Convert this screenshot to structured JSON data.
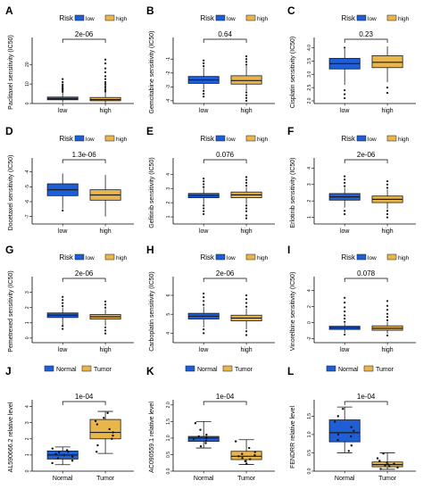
{
  "colors": {
    "low": "#1f5fd6",
    "high": "#e8b64c",
    "Normal": "#1f5fd6",
    "Tumor": "#e8b64c",
    "stroke": "#1a1a1a",
    "point": "#111111"
  },
  "chart_data": [
    {
      "panel": "A",
      "type": "boxplot",
      "ylabel": "Paclitaxel sensitivity (IC50)",
      "legend_title": "Risk",
      "legend": [
        "low",
        "high"
      ],
      "categories": [
        "low",
        "high"
      ],
      "pvalue": "2e-06",
      "yticks": [
        0,
        10,
        20
      ],
      "ytick_labels": [
        "0",
        "10",
        "20"
      ],
      "ylim": [
        0,
        32
      ],
      "boxes": [
        {
          "min": 0.6,
          "q1": 1.9,
          "median": 2.4,
          "q3": 3.3,
          "max": 5.6,
          "outliers": [
            6,
            6.8,
            7.5,
            8.2,
            9,
            9.8,
            11,
            12.5
          ]
        },
        {
          "min": 0.3,
          "q1": 1.4,
          "median": 2.0,
          "q3": 3.1,
          "max": 5.8,
          "outliers": [
            6.2,
            7,
            8,
            9,
            10,
            11,
            12.5,
            14,
            16,
            18,
            20.5,
            22.5
          ]
        }
      ]
    },
    {
      "panel": "B",
      "type": "boxplot",
      "ylabel": "Gemcitabine sensitivity (IC50)",
      "legend_title": "Risk",
      "legend": [
        "low",
        "high"
      ],
      "categories": [
        "low",
        "high"
      ],
      "pvalue": "0.64",
      "yticks": [
        -4,
        -3,
        -2,
        -1
      ],
      "ytick_labels": [
        "-4",
        "-3",
        "-2",
        "-1"
      ],
      "ylim": [
        -4.2,
        0.3
      ],
      "boxes": [
        {
          "min": -3.2,
          "q1": -2.75,
          "median": -2.5,
          "q3": -2.25,
          "max": -1.6,
          "outliers": [
            -1.5,
            -1.3,
            -1.1,
            -3.3,
            -3.5,
            -3.7
          ]
        },
        {
          "min": -3.3,
          "q1": -2.8,
          "median": -2.55,
          "q3": -2.2,
          "max": -1.5,
          "outliers": [
            -1.4,
            -1.2,
            -1.0,
            -0.8,
            -3.4,
            -3.6,
            -3.8,
            -4.0
          ]
        }
      ]
    },
    {
      "panel": "C",
      "type": "boxplot",
      "ylabel": "Cisplatin sensitivity (IC50)",
      "legend_title": "Risk",
      "legend": [
        "low",
        "high"
      ],
      "categories": [
        "low",
        "high"
      ],
      "pvalue": "0.23",
      "yticks": [
        2,
        2.5,
        3,
        3.5,
        4
      ],
      "ytick_labels": [
        "2.0",
        "2.5",
        "3.0",
        "3.5",
        "4.0"
      ],
      "ylim": [
        1.9,
        4.25
      ],
      "boxes": [
        {
          "min": 2.6,
          "q1": 3.2,
          "median": 3.4,
          "q3": 3.6,
          "max": 3.95,
          "outliers": [
            2.4,
            2.25,
            2.1,
            4.0
          ]
        },
        {
          "min": 2.7,
          "q1": 3.25,
          "median": 3.45,
          "q3": 3.7,
          "max": 4.05,
          "outliers": [
            2.5,
            2.3
          ]
        }
      ]
    },
    {
      "panel": "D",
      "type": "boxplot",
      "ylabel": "Docetaxel sensitivity (IC50)",
      "legend_title": "Risk",
      "legend": [
        "low",
        "high"
      ],
      "categories": [
        "low",
        "high"
      ],
      "pvalue": "1.3e-06",
      "yticks": [
        -7,
        -6,
        -5,
        -4
      ],
      "ytick_labels": [
        "-7",
        "-6",
        "-5",
        "-4"
      ],
      "ylim": [
        -7.5,
        -3.3
      ],
      "boxes": [
        {
          "min": -6.5,
          "q1": -5.6,
          "median": -5.2,
          "q3": -4.8,
          "max": -4.1,
          "outliers": [
            -6.6
          ]
        },
        {
          "min": -7.0,
          "q1": -5.9,
          "median": -5.55,
          "q3": -5.2,
          "max": -4.2,
          "outliers": []
        }
      ]
    },
    {
      "panel": "E",
      "type": "boxplot",
      "ylabel": "Gefitinib sensitivity (IC50)",
      "legend_title": "Risk",
      "legend": [
        "low",
        "high"
      ],
      "categories": [
        "low",
        "high"
      ],
      "pvalue": "0.076",
      "yticks": [
        1,
        2,
        3,
        4
      ],
      "ytick_labels": [
        "1",
        "2",
        "3",
        "4"
      ],
      "ylim": [
        0.5,
        4.9
      ],
      "boxes": [
        {
          "min": 1.9,
          "q1": 2.35,
          "median": 2.5,
          "q3": 2.65,
          "max": 3.0,
          "outliers": [
            3.1,
            3.3,
            3.5,
            3.7,
            1.8,
            1.6,
            1.4,
            1.2
          ]
        },
        {
          "min": 1.9,
          "q1": 2.35,
          "median": 2.55,
          "q3": 2.75,
          "max": 3.1,
          "outliers": [
            3.2,
            3.4,
            3.6,
            3.8,
            1.8,
            1.6,
            1.4,
            1.1,
            0.9
          ]
        }
      ]
    },
    {
      "panel": "F",
      "type": "boxplot",
      "ylabel": "Erlotinib sensitivity (IC50)",
      "legend_title": "Risk",
      "legend": [
        "low",
        "high"
      ],
      "categories": [
        "low",
        "high"
      ],
      "pvalue": "2e-06",
      "yticks": [
        1,
        2,
        3,
        4
      ],
      "ytick_labels": [
        "1",
        "2",
        "3",
        "4"
      ],
      "ylim": [
        0.6,
        4.4
      ],
      "boxes": [
        {
          "min": 1.6,
          "q1": 2.05,
          "median": 2.25,
          "q3": 2.45,
          "max": 2.8,
          "outliers": [
            2.9,
            3.1,
            3.3,
            3.5,
            1.4,
            1.2
          ]
        },
        {
          "min": 1.5,
          "q1": 1.9,
          "median": 2.1,
          "q3": 2.3,
          "max": 2.7,
          "outliers": [
            2.8,
            3.0,
            3.2,
            1.4,
            1.2,
            1.0
          ]
        }
      ]
    },
    {
      "panel": "G",
      "type": "boxplot",
      "ylabel": "Pemetrexed sensitivity (IC50)",
      "legend_title": "Risk",
      "legend": [
        "low",
        "high"
      ],
      "categories": [
        "low",
        "high"
      ],
      "pvalue": "2e-06",
      "yticks": [
        0,
        1,
        2,
        3
      ],
      "ytick_labels": [
        "0",
        "1",
        "2",
        "3"
      ],
      "ylim": [
        -0.3,
        3.8
      ],
      "boxes": [
        {
          "min": 0.85,
          "q1": 1.35,
          "median": 1.5,
          "q3": 1.65,
          "max": 2.0,
          "outliers": [
            2.1,
            2.3,
            2.5,
            2.7,
            0.8,
            0.6
          ]
        },
        {
          "min": 0.8,
          "q1": 1.25,
          "median": 1.4,
          "q3": 1.55,
          "max": 1.9,
          "outliers": [
            2.0,
            2.2,
            2.4,
            0.7,
            0.5,
            0.3
          ]
        }
      ]
    },
    {
      "panel": "H",
      "type": "boxplot",
      "ylabel": "Carboplatin sensitivity (IC50)",
      "legend_title": "Risk",
      "legend": [
        "low",
        "high"
      ],
      "categories": [
        "low",
        "high"
      ],
      "pvalue": "2e-06",
      "yticks": [
        4,
        5,
        6
      ],
      "ytick_labels": [
        "4",
        "5",
        "6"
      ],
      "ylim": [
        3.5,
        6.8
      ],
      "boxes": [
        {
          "min": 4.3,
          "q1": 4.75,
          "median": 4.9,
          "q3": 5.05,
          "max": 5.4,
          "outliers": [
            5.5,
            5.7,
            5.9,
            6.1,
            4.2,
            4.0
          ]
        },
        {
          "min": 4.2,
          "q1": 4.65,
          "median": 4.8,
          "q3": 4.95,
          "max": 5.3,
          "outliers": [
            5.4,
            5.6,
            5.8,
            6.0,
            4.1,
            3.9
          ]
        }
      ]
    },
    {
      "panel": "I",
      "type": "boxplot",
      "ylabel": "Vinorelbine sensitivity (IC50)",
      "legend_title": "Risk",
      "legend": [
        "low",
        "high"
      ],
      "categories": [
        "low",
        "high"
      ],
      "pvalue": "0.078",
      "yticks": [
        -2,
        0,
        2,
        4
      ],
      "ytick_labels": [
        "-2",
        "0",
        "2",
        "4"
      ],
      "ylim": [
        -2.5,
        5.3
      ],
      "boxes": [
        {
          "min": -1.3,
          "q1": -0.85,
          "median": -0.65,
          "q3": -0.45,
          "max": -0.1,
          "outliers": [
            0.1,
            0.5,
            0.9,
            1.4,
            1.9,
            2.5,
            3.1,
            -1.5
          ]
        },
        {
          "min": -1.4,
          "q1": -0.95,
          "median": -0.7,
          "q3": -0.4,
          "max": 0.1,
          "outliers": [
            0.3,
            0.7,
            1.1,
            1.6,
            2.1,
            2.7,
            -1.6
          ]
        }
      ]
    },
    {
      "panel": "J",
      "type": "boxplot",
      "ylabel": "AL590666.2 relative level",
      "legend_title": "",
      "legend": [
        "Normal",
        "Tumor"
      ],
      "categories": [
        "Normal",
        "Tumor"
      ],
      "pvalue": "1e-04",
      "yticks": [
        0,
        1,
        2,
        3,
        4
      ],
      "ytick_labels": [
        "0",
        "1",
        "2",
        "3",
        "4"
      ],
      "ylim": [
        0,
        4.2
      ],
      "boxes": [
        {
          "min": 0.4,
          "q1": 0.75,
          "median": 1.0,
          "q3": 1.25,
          "max": 1.5,
          "outliers": []
        },
        {
          "min": 1.1,
          "q1": 2.0,
          "median": 2.4,
          "q3": 3.2,
          "max": 3.7,
          "outliers": []
        }
      ],
      "jitter": [
        [
          0.5,
          0.65,
          0.8,
          0.9,
          1.0,
          1.05,
          1.15,
          1.2,
          1.3,
          1.4
        ],
        [
          1.2,
          1.6,
          2.0,
          2.2,
          2.4,
          2.6,
          2.9,
          3.1,
          3.3,
          3.6
        ]
      ]
    },
    {
      "panel": "K",
      "type": "boxplot",
      "ylabel": "AC090559.1 relative level",
      "legend_title": "",
      "legend": [
        "Normal",
        "Tumor"
      ],
      "categories": [
        "Normal",
        "Tumor"
      ],
      "pvalue": "1e-04",
      "yticks": [
        0,
        0.5,
        1,
        1.5,
        2
      ],
      "ytick_labels": [
        "0.0",
        "0.5",
        "1.0",
        "1.5",
        "2.0"
      ],
      "ylim": [
        0,
        2.05
      ],
      "boxes": [
        {
          "min": 0.7,
          "q1": 0.9,
          "median": 1.0,
          "q3": 1.05,
          "max": 1.5,
          "outliers": []
        },
        {
          "min": 0.2,
          "q1": 0.35,
          "median": 0.45,
          "q3": 0.6,
          "max": 0.95,
          "outliers": []
        }
      ],
      "jitter": [
        [
          0.75,
          0.85,
          0.92,
          0.97,
          1.0,
          1.02,
          1.05,
          1.1,
          1.25,
          1.45
        ],
        [
          0.22,
          0.3,
          0.36,
          0.4,
          0.45,
          0.48,
          0.52,
          0.58,
          0.7,
          0.9
        ]
      ]
    },
    {
      "panel": "L",
      "type": "boxplot",
      "ylabel": "FENDRR relative level",
      "legend_title": "",
      "legend": [
        "Normal",
        "Tumor"
      ],
      "categories": [
        "Normal",
        "Tumor"
      ],
      "pvalue": "1e-04",
      "yticks": [
        0,
        0.5,
        1,
        1.5
      ],
      "ytick_labels": [
        "0.0",
        "0.5",
        "1.0",
        "1.5"
      ],
      "ylim": [
        0,
        1.85
      ],
      "boxes": [
        {
          "min": 0.5,
          "q1": 0.8,
          "median": 1.05,
          "q3": 1.4,
          "max": 1.75,
          "outliers": []
        },
        {
          "min": 0.05,
          "q1": 0.12,
          "median": 0.18,
          "q3": 0.25,
          "max": 0.5,
          "outliers": []
        }
      ],
      "jitter": [
        [
          0.55,
          0.7,
          0.85,
          0.95,
          1.0,
          1.1,
          1.2,
          1.35,
          1.5,
          1.7
        ],
        [
          0.06,
          0.1,
          0.13,
          0.16,
          0.18,
          0.2,
          0.23,
          0.28,
          0.35,
          0.48
        ]
      ]
    }
  ]
}
